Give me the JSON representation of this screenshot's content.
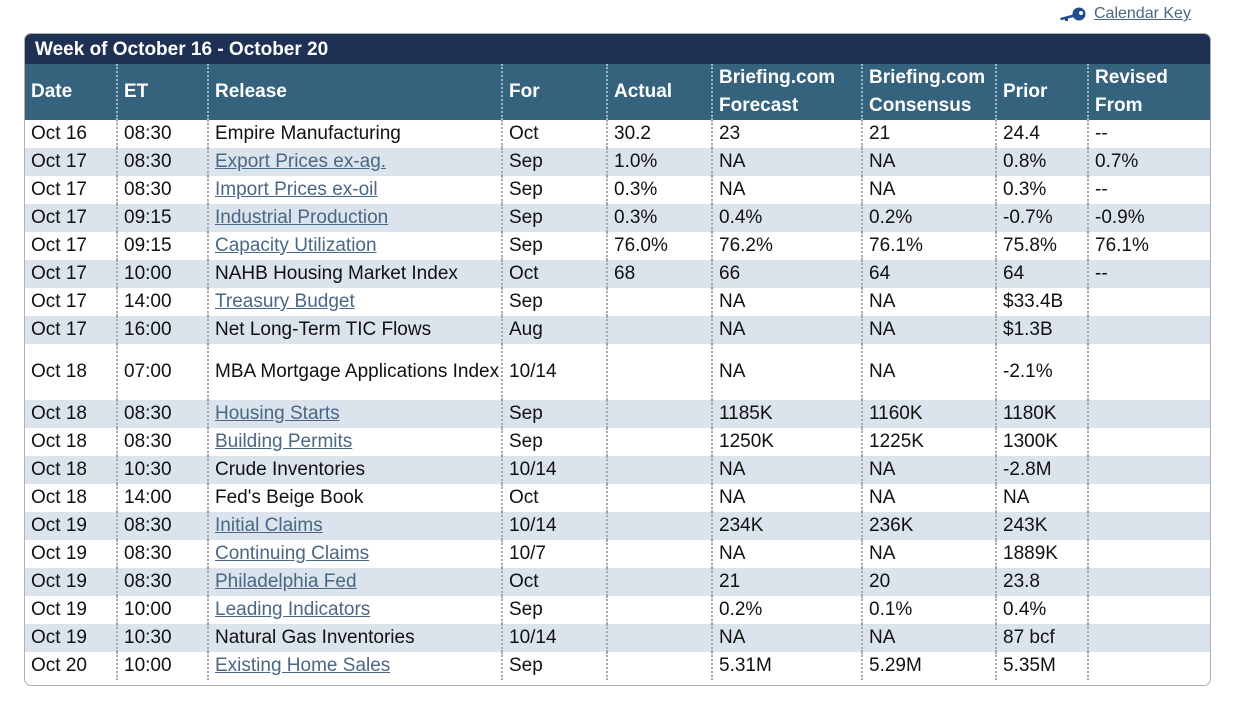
{
  "calendar_key": {
    "label": "Calendar Key",
    "icon": "key-icon"
  },
  "week_title": "Week of October 16 - October 20",
  "headers": {
    "date": "Date",
    "et": "ET",
    "release": "Release",
    "for": "For",
    "actual": "Actual",
    "forecast_line1": "Briefing.com",
    "forecast_line2": "Forecast",
    "consensus_line1": "Briefing.com",
    "consensus_line2": "Consensus",
    "prior": "Prior",
    "revised_line1": "Revised",
    "revised_line2": "From"
  },
  "colors": {
    "week_bar": "#1e3155",
    "header": "#35637e",
    "stripe": "#dbe3ec",
    "link": "#4a6785"
  },
  "rows": [
    {
      "date": "Oct 16",
      "et": "08:30",
      "release": "Empire Manufacturing",
      "link": false,
      "for": "Oct",
      "actual": "30.2",
      "forecast": "23",
      "consensus": "21",
      "prior": "24.4",
      "revised": "--"
    },
    {
      "date": "Oct 17",
      "et": "08:30",
      "release": "Export Prices ex-ag.",
      "link": true,
      "for": "Sep",
      "actual": "1.0%",
      "forecast": "NA",
      "consensus": "NA",
      "prior": "0.8%",
      "revised": "0.7%"
    },
    {
      "date": "Oct 17",
      "et": "08:30",
      "release": "Import Prices ex-oil",
      "link": true,
      "for": "Sep",
      "actual": "0.3%",
      "forecast": "NA",
      "consensus": "NA",
      "prior": "0.3%",
      "revised": "--"
    },
    {
      "date": "Oct 17",
      "et": "09:15",
      "release": "Industrial Production",
      "link": true,
      "for": "Sep",
      "actual": "0.3%",
      "forecast": "0.4%",
      "consensus": "0.2%",
      "prior": "-0.7%",
      "revised": "-0.9%"
    },
    {
      "date": "Oct 17",
      "et": "09:15",
      "release": "Capacity Utilization",
      "link": true,
      "for": "Sep",
      "actual": "76.0%",
      "forecast": "76.2%",
      "consensus": "76.1%",
      "prior": "75.8%",
      "revised": "76.1%"
    },
    {
      "date": "Oct 17",
      "et": "10:00",
      "release": "NAHB Housing Market Index",
      "link": false,
      "for": "Oct",
      "actual": "68",
      "forecast": "66",
      "consensus": "64",
      "prior": "64",
      "revised": "--"
    },
    {
      "date": "Oct 17",
      "et": "14:00",
      "release": "Treasury Budget",
      "link": true,
      "for": "Sep",
      "actual": "",
      "forecast": "NA",
      "consensus": "NA",
      "prior": "$33.4B",
      "revised": ""
    },
    {
      "date": "Oct 17",
      "et": "16:00",
      "release": "Net Long-Term TIC Flows",
      "link": false,
      "for": "Aug",
      "actual": "",
      "forecast": "NA",
      "consensus": "NA",
      "prior": "$1.3B",
      "revised": ""
    },
    {
      "date": "Oct 18",
      "et": "07:00",
      "release": "MBA Mortgage Applications Index",
      "link": false,
      "tall": true,
      "for": "10/14",
      "actual": "",
      "forecast": "NA",
      "consensus": "NA",
      "prior": "-2.1%",
      "revised": ""
    },
    {
      "date": "Oct 18",
      "et": "08:30",
      "release": "Housing Starts",
      "link": true,
      "for": "Sep",
      "actual": "",
      "forecast": "1185K",
      "consensus": "1160K",
      "prior": "1180K",
      "revised": ""
    },
    {
      "date": "Oct 18",
      "et": "08:30",
      "release": "Building Permits",
      "link": true,
      "for": "Sep",
      "actual": "",
      "forecast": "1250K",
      "consensus": "1225K",
      "prior": "1300K",
      "revised": ""
    },
    {
      "date": "Oct 18",
      "et": "10:30",
      "release": "Crude Inventories",
      "link": false,
      "for": "10/14",
      "actual": "",
      "forecast": "NA",
      "consensus": "NA",
      "prior": "-2.8M",
      "revised": ""
    },
    {
      "date": "Oct 18",
      "et": "14:00",
      "release": "Fed's Beige Book",
      "link": false,
      "for": "Oct",
      "actual": "",
      "forecast": "NA",
      "consensus": "NA",
      "prior": "NA",
      "revised": ""
    },
    {
      "date": "Oct 19",
      "et": "08:30",
      "release": "Initial Claims",
      "link": true,
      "for": "10/14",
      "actual": "",
      "forecast": "234K",
      "consensus": "236K",
      "prior": "243K",
      "revised": ""
    },
    {
      "date": "Oct 19",
      "et": "08:30",
      "release": "Continuing Claims",
      "link": true,
      "for": "10/7",
      "actual": "",
      "forecast": "NA",
      "consensus": "NA",
      "prior": "1889K",
      "revised": ""
    },
    {
      "date": "Oct 19",
      "et": "08:30",
      "release": "Philadelphia Fed",
      "link": true,
      "for": "Oct",
      "actual": "",
      "forecast": "21",
      "consensus": "20",
      "prior": "23.8",
      "revised": ""
    },
    {
      "date": "Oct 19",
      "et": "10:00",
      "release": "Leading Indicators",
      "link": true,
      "for": "Sep",
      "actual": "",
      "forecast": "0.2%",
      "consensus": "0.1%",
      "prior": "0.4%",
      "revised": ""
    },
    {
      "date": "Oct 19",
      "et": "10:30",
      "release": "Natural Gas Inventories",
      "link": false,
      "for": "10/14",
      "actual": "",
      "forecast": "NA",
      "consensus": "NA",
      "prior": "87 bcf",
      "revised": ""
    },
    {
      "date": "Oct 20",
      "et": "10:00",
      "release": "Existing Home Sales",
      "link": true,
      "for": "Sep",
      "actual": "",
      "forecast": "5.31M",
      "consensus": "5.29M",
      "prior": "5.35M",
      "revised": ""
    }
  ]
}
